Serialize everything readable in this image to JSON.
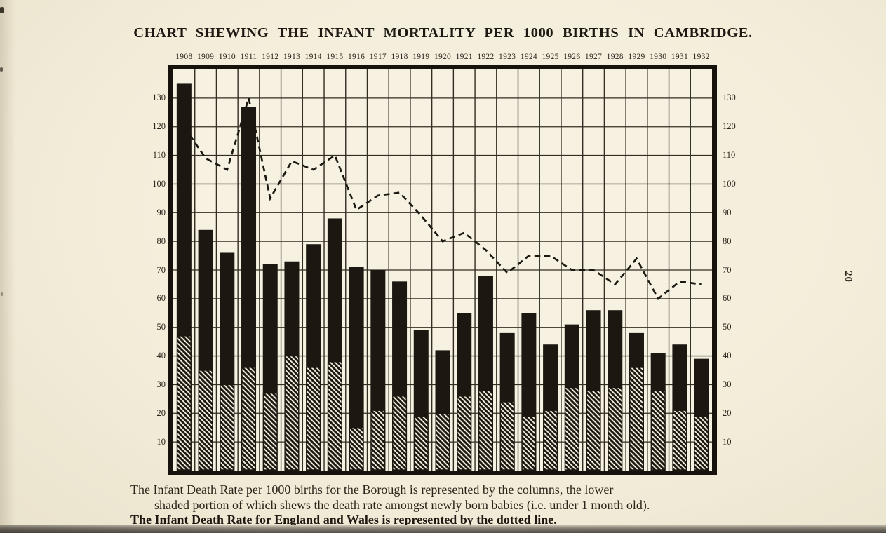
{
  "page": {
    "title": "CHART SHEWING THE INFANT MORTALITY PER 1000 BIRTHS IN CAMBRIDGE.",
    "page_number": "20",
    "caption_line1": "The Infant Death Rate per 1000 births for the Borough is represented by the columns, the lower",
    "caption_line2": "shaded portion of which shews the death rate amongst newly born babies (i.e. under 1 month old).",
    "caption_line3": "The Infant Death Rate for England and Wales is represented by the dotted line."
  },
  "colors": {
    "paper": "#f6f1e1",
    "ink": "#1c1711",
    "grid": "#332d23"
  },
  "chart_data": {
    "type": "bar",
    "title": "CHART SHEWING THE INFANT MORTALITY PER 1000 BIRTHS IN CAMBRIDGE.",
    "categories": [
      "1908",
      "1909",
      "1910",
      "1911",
      "1912",
      "1913",
      "1914",
      "1915",
      "1916",
      "1917",
      "1918",
      "1919",
      "1920",
      "1921",
      "1922",
      "1923",
      "1924",
      "1925",
      "1926",
      "1927",
      "1928",
      "1929",
      "1930",
      "1931",
      "1932"
    ],
    "series": [
      {
        "name": "Borough infant death rate per 1000 births (total column height)",
        "style": "solid-black-column",
        "values": [
          135,
          84,
          76,
          127,
          72,
          73,
          79,
          88,
          71,
          70,
          66,
          49,
          42,
          55,
          68,
          48,
          55,
          44,
          51,
          56,
          56,
          48,
          41,
          44,
          39
        ]
      },
      {
        "name": "Death rate amongst newly born babies, under 1 month old (lower shaded portion of column)",
        "style": "diagonal-hatched-lower-portion",
        "values": [
          47,
          35,
          30,
          36,
          27,
          40,
          36,
          38,
          15,
          21,
          26,
          19,
          20,
          26,
          28,
          24,
          19,
          21,
          29,
          28,
          29,
          36,
          28,
          21,
          19
        ]
      },
      {
        "name": "England and Wales infant death rate (dotted line)",
        "style": "dashed-line",
        "values": [
          120,
          109,
          105,
          130,
          95,
          108,
          105,
          110,
          91,
          96,
          97,
          89,
          80,
          83,
          77,
          69,
          75,
          75,
          70,
          70,
          65,
          74,
          60,
          66,
          65
        ]
      }
    ],
    "ylim": [
      0,
      140
    ],
    "ytick_step": 10,
    "yticks_labeled": [
      10,
      20,
      30,
      40,
      50,
      60,
      70,
      80,
      90,
      100,
      110,
      120,
      130
    ],
    "ytick_label_sides": "both-left-and-right",
    "grid": "full-grid-horizontal-and-vertical",
    "legend": "described-in-caption-below-chart"
  }
}
